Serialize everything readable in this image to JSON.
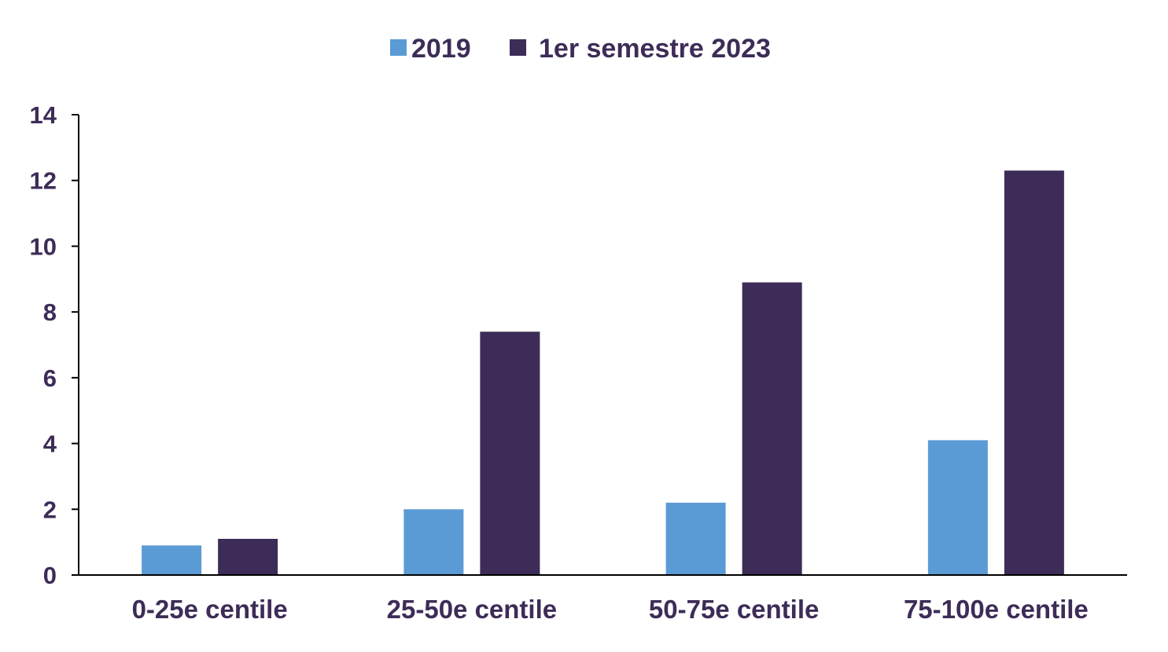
{
  "chart_data": {
    "type": "bar",
    "title": "",
    "xlabel": "",
    "ylabel": "",
    "categories": [
      "0-25e centile",
      "25-50e centile",
      "50-75e centile",
      "75-100e centile"
    ],
    "series": [
      {
        "name": "2019",
        "values": [
          0.9,
          2.0,
          2.2,
          4.1
        ]
      },
      {
        "name": "1er semestre 2023",
        "values": [
          1.1,
          7.4,
          8.9,
          12.3
        ]
      }
    ],
    "ylim": [
      0,
      14
    ],
    "yticks": [
      "0",
      "2",
      "4",
      "6",
      "8",
      "10",
      "12",
      "14"
    ],
    "grid": false,
    "legend_position": "top-center",
    "colors": {
      "series": [
        "#5b9bd5",
        "#3d2c57"
      ],
      "text": "#3d2c57",
      "axis": "#000000"
    }
  }
}
